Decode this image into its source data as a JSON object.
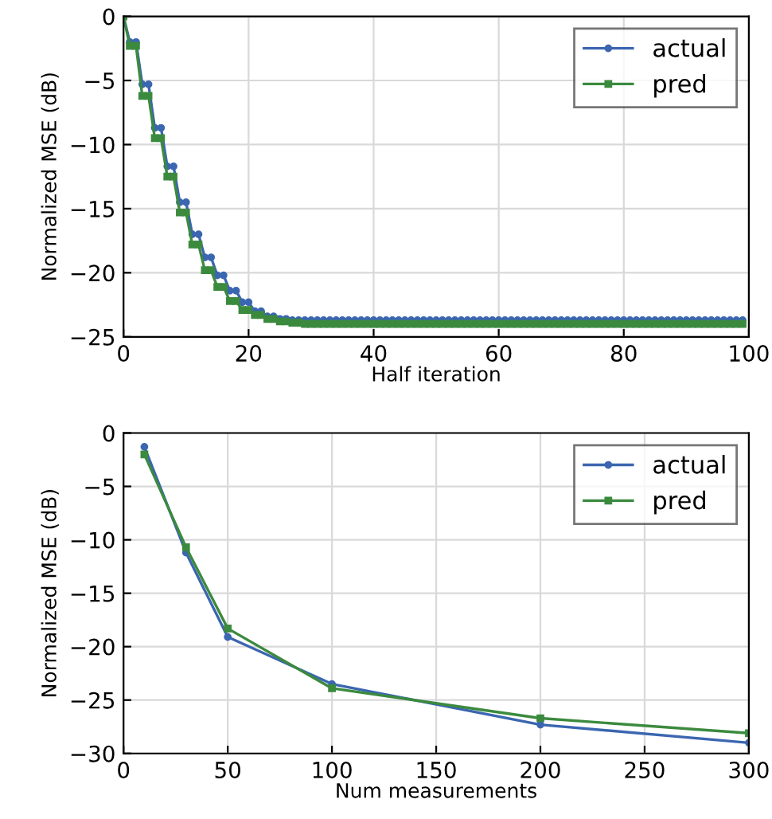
{
  "chart_data": [
    {
      "type": "line",
      "xlabel": "Half iteration",
      "ylabel": "Normalized MSE (dB)",
      "x": [
        0,
        1,
        2,
        3,
        4,
        5,
        6,
        7,
        8,
        9,
        10,
        11,
        12,
        13,
        14,
        15,
        16,
        17,
        18,
        19,
        20,
        21,
        22,
        23,
        24,
        25,
        26,
        27,
        28,
        29,
        30,
        31,
        32,
        33,
        34,
        35,
        36,
        37,
        38,
        39,
        40,
        41,
        42,
        43,
        44,
        45,
        46,
        47,
        48,
        49,
        50,
        51,
        52,
        53,
        54,
        55,
        56,
        57,
        58,
        59,
        60,
        61,
        62,
        63,
        64,
        65,
        66,
        67,
        68,
        69,
        70,
        71,
        72,
        73,
        74,
        75,
        76,
        77,
        78,
        79,
        80,
        81,
        82,
        83,
        84,
        85,
        86,
        87,
        88,
        89,
        90,
        91,
        92,
        93,
        94,
        95,
        96,
        97,
        98,
        99
      ],
      "series": [
        {
          "name": "actual",
          "color": "#3b66b0",
          "marker": "circle",
          "values": [
            0,
            -2,
            -2,
            -5.3,
            -5.3,
            -8.7,
            -8.7,
            -11.7,
            -11.7,
            -14.5,
            -14.5,
            -17,
            -17,
            -18.8,
            -18.8,
            -20.2,
            -20.2,
            -21.4,
            -21.4,
            -22.3,
            -22.3,
            -23,
            -23,
            -23.4,
            -23.4,
            -23.6,
            -23.6,
            -23.7,
            -23.7,
            -23.7,
            -23.7,
            -23.7,
            -23.7,
            -23.7,
            -23.7,
            -23.7,
            -23.7,
            -23.7,
            -23.7,
            -23.7,
            -23.7,
            -23.7,
            -23.7,
            -23.7,
            -23.7,
            -23.7,
            -23.7,
            -23.7,
            -23.7,
            -23.7,
            -23.7,
            -23.7,
            -23.7,
            -23.7,
            -23.7,
            -23.7,
            -23.7,
            -23.7,
            -23.7,
            -23.7,
            -23.7,
            -23.7,
            -23.7,
            -23.7,
            -23.7,
            -23.7,
            -23.7,
            -23.7,
            -23.7,
            -23.7,
            -23.7,
            -23.7,
            -23.7,
            -23.7,
            -23.7,
            -23.7,
            -23.7,
            -23.7,
            -23.7,
            -23.7,
            -23.7,
            -23.7,
            -23.7,
            -23.7,
            -23.7,
            -23.7,
            -23.7,
            -23.7,
            -23.7,
            -23.7,
            -23.7,
            -23.7,
            -23.7,
            -23.7,
            -23.7,
            -23.7,
            -23.7,
            -23.7,
            -23.7,
            -23.7
          ]
        },
        {
          "name": "pred",
          "color": "#3b8a3e",
          "marker": "square",
          "values": [
            0,
            -2.3,
            -2.3,
            -6.2,
            -6.2,
            -9.5,
            -9.5,
            -12.5,
            -12.5,
            -15.3,
            -15.3,
            -17.8,
            -17.8,
            -19.8,
            -19.8,
            -21.1,
            -21.1,
            -22.2,
            -22.2,
            -22.9,
            -22.9,
            -23.3,
            -23.3,
            -23.6,
            -23.6,
            -23.8,
            -23.8,
            -23.9,
            -23.9,
            -24,
            -24,
            -24,
            -24,
            -24,
            -24,
            -24,
            -24,
            -24,
            -24,
            -24,
            -24,
            -24,
            -24,
            -24,
            -24,
            -24,
            -24,
            -24,
            -24,
            -24,
            -24,
            -24,
            -24,
            -24,
            -24,
            -24,
            -24,
            -24,
            -24,
            -24,
            -24,
            -24,
            -24,
            -24,
            -24,
            -24,
            -24,
            -24,
            -24,
            -24,
            -24,
            -24,
            -24,
            -24,
            -24,
            -24,
            -24,
            -24,
            -24,
            -24,
            -24,
            -24,
            -24,
            -24,
            -24,
            -24,
            -24,
            -24,
            -24,
            -24,
            -24,
            -24,
            -24,
            -24,
            -24,
            -24,
            -24,
            -24,
            -24,
            -24
          ]
        }
      ],
      "xlim": [
        0,
        100
      ],
      "ylim": [
        -25,
        0
      ],
      "xticks": [
        0,
        20,
        40,
        60,
        80,
        100
      ],
      "yticks": [
        -25,
        -20,
        -15,
        -10,
        -5,
        0
      ],
      "grid": true,
      "legend": "top right"
    },
    {
      "type": "line",
      "xlabel": "Num measurements",
      "ylabel": "Normalized MSE (dB)",
      "x": [
        10,
        30,
        50,
        100,
        200,
        300
      ],
      "series": [
        {
          "name": "actual",
          "color": "#3b66b0",
          "marker": "circle",
          "values": [
            -1.3,
            -11.2,
            -19.1,
            -23.5,
            -27.3,
            -29.0
          ]
        },
        {
          "name": "pred",
          "color": "#3b8a3e",
          "marker": "square",
          "values": [
            -2.0,
            -10.7,
            -18.3,
            -23.9,
            -26.7,
            -28.1
          ]
        }
      ],
      "xlim": [
        0,
        300
      ],
      "ylim": [
        -30,
        0
      ],
      "xticks": [
        0,
        50,
        100,
        150,
        200,
        250,
        300
      ],
      "yticks": [
        -30,
        -25,
        -20,
        -15,
        -10,
        -5,
        0
      ],
      "grid": true,
      "legend": "top right"
    }
  ]
}
